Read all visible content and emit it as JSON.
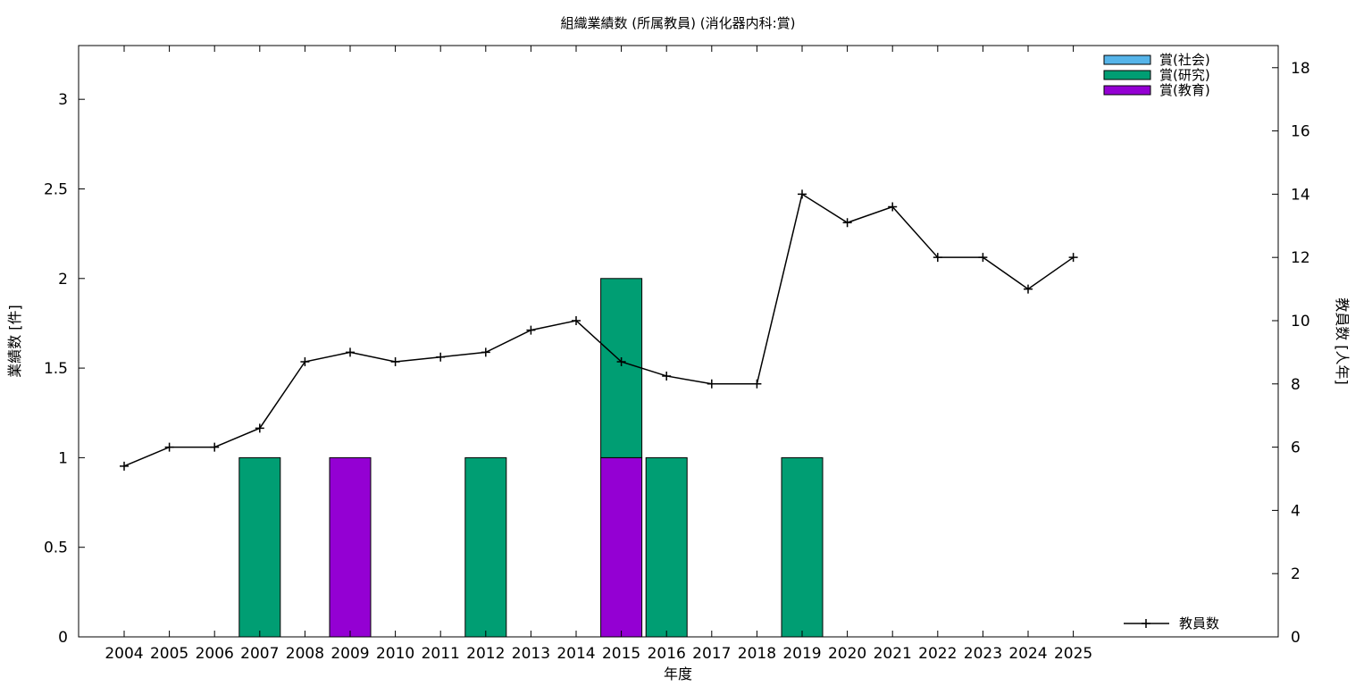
{
  "chart_data": {
    "type": "bar",
    "title": "組織業績数 (所属教員) (消化器内科:賞)",
    "xlabel": "年度",
    "ylabel": "業績数 [件]",
    "y2label": "教員数 [人年]",
    "categories": [
      "2004",
      "2005",
      "2006",
      "2007",
      "2008",
      "2009",
      "2010",
      "2011",
      "2012",
      "2013",
      "2014",
      "2015",
      "2016",
      "2017",
      "2018",
      "2019",
      "2020",
      "2021",
      "2022",
      "2023",
      "2024",
      "2025"
    ],
    "ylim": [
      0,
      3.3
    ],
    "yticks": [
      "0",
      "0.5",
      "1",
      "1.5",
      "2",
      "2.5",
      "3"
    ],
    "y2lim": [
      0,
      18.7
    ],
    "y2ticks": [
      "0",
      "2",
      "4",
      "6",
      "8",
      "10",
      "12",
      "14",
      "16",
      "18"
    ],
    "stacked": true,
    "series": [
      {
        "name": "賞(教育)",
        "color": "#9400d3",
        "values": [
          0,
          0,
          0,
          0,
          0,
          1,
          0,
          0,
          0,
          0,
          0,
          1,
          0,
          0,
          0,
          0,
          0,
          0,
          0,
          0,
          0,
          0
        ]
      },
      {
        "name": "賞(研究)",
        "color": "#009e73",
        "values": [
          0,
          0,
          0,
          1,
          0,
          0,
          0,
          0,
          1,
          0,
          0,
          1,
          1,
          0,
          0,
          1,
          0,
          0,
          0,
          0,
          0,
          0
        ]
      },
      {
        "name": "賞(社会)",
        "color": "#56b4e9",
        "values": [
          0,
          0,
          0,
          0,
          0,
          0,
          0,
          0,
          0,
          0,
          0,
          0,
          0,
          0,
          0,
          0,
          0,
          0,
          0,
          0,
          0,
          0
        ]
      }
    ],
    "legend_order": [
      "賞(社会)",
      "賞(研究)",
      "賞(教育)"
    ],
    "line_series": {
      "name": "教員数",
      "color": "#000000",
      "axis": "right",
      "values": [
        5.4,
        6.0,
        6.0,
        6.6,
        8.7,
        9.0,
        8.7,
        8.85,
        9.0,
        9.7,
        10.0,
        8.7,
        8.25,
        8.0,
        8.0,
        14.0,
        13.1,
        13.6,
        12.0,
        12.0,
        11.0,
        12.0
      ]
    },
    "grid": false,
    "legend_position": "top-right"
  }
}
